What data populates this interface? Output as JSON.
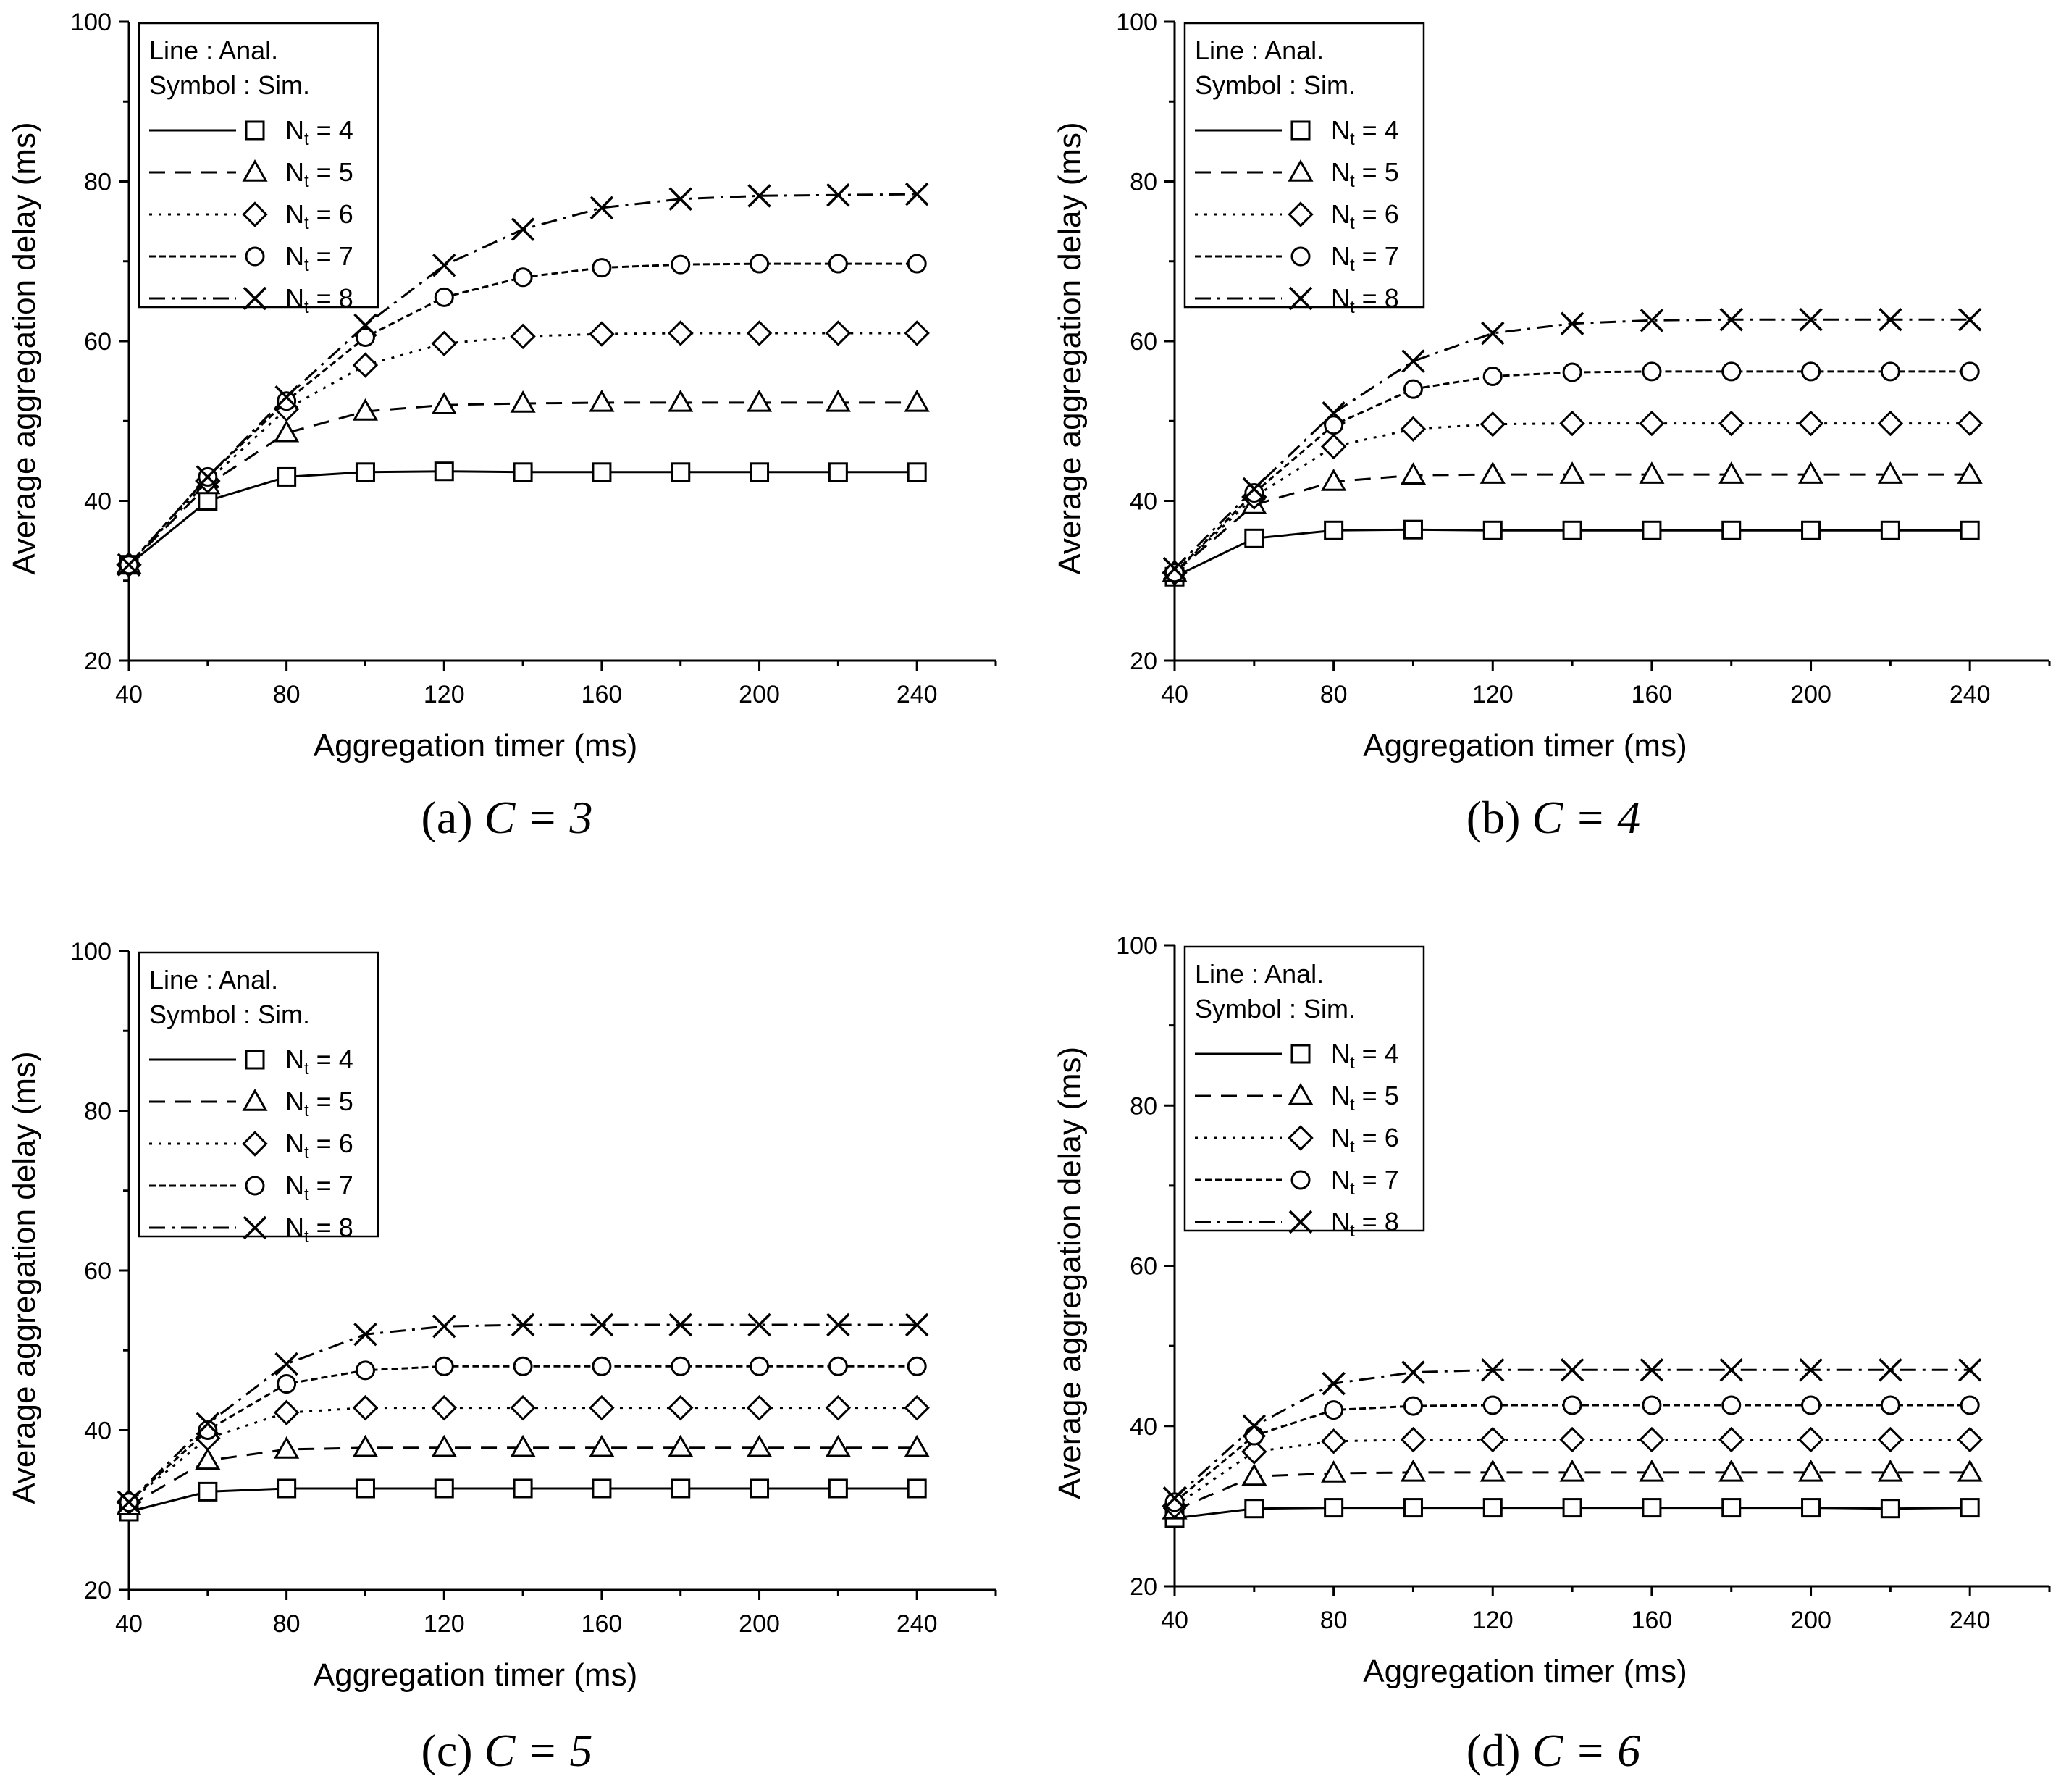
{
  "figure": {
    "panels": [
      {
        "caption_label": "(a)",
        "caption_text": "C = 3",
        "chart_data": {
          "type": "line",
          "xlabel": "Aggregation timer (ms)",
          "ylabel": "Average aggregation delay (ms)",
          "xlim": [
            40,
            260
          ],
          "ylim": [
            20,
            100
          ],
          "xticks": [
            40,
            80,
            120,
            160,
            200,
            240
          ],
          "yticks": [
            20,
            40,
            60,
            80,
            100
          ],
          "grid": false,
          "legend_position": "top-left",
          "legend_header": [
            "Line : Anal.",
            "Symbol : Sim."
          ],
          "x": [
            40,
            60,
            80,
            100,
            120,
            140,
            160,
            180,
            200,
            220,
            240
          ],
          "series": [
            {
              "name": "N_t = 4",
              "label_main": "N",
              "label_sub": "t",
              "label_rest": " = 4",
              "marker": "square",
              "dash": "solid",
              "values": [
                32,
                40,
                43,
                43.6,
                43.7,
                43.6,
                43.6,
                43.6,
                43.6,
                43.6,
                43.6
              ]
            },
            {
              "name": "N_t = 5",
              "label_main": "N",
              "label_sub": "t",
              "label_rest": " = 5",
              "marker": "triangle",
              "dash": "dash",
              "values": [
                32,
                42,
                48.5,
                51.2,
                52,
                52.2,
                52.3,
                52.3,
                52.3,
                52.3,
                52.3
              ]
            },
            {
              "name": "N_t = 6",
              "label_main": "N",
              "label_sub": "t",
              "label_rest": " = 6",
              "marker": "diamond",
              "dash": "dot",
              "values": [
                32,
                42.5,
                51.5,
                57,
                59.7,
                60.6,
                60.9,
                61,
                61,
                61,
                61
              ]
            },
            {
              "name": "N_t = 7",
              "label_main": "N",
              "label_sub": "t",
              "label_rest": " = 7",
              "marker": "circle",
              "dash": "shortdash",
              "values": [
                32,
                43,
                52.5,
                60.5,
                65.5,
                68,
                69.2,
                69.6,
                69.7,
                69.7,
                69.7
              ]
            },
            {
              "name": "N_t = 8",
              "label_main": "N",
              "label_sub": "t",
              "label_rest": " = 8",
              "marker": "x",
              "dash": "dashdot",
              "values": [
                32,
                43,
                53,
                62,
                69.5,
                74,
                76.7,
                77.8,
                78.2,
                78.3,
                78.4
              ]
            }
          ]
        }
      },
      {
        "caption_label": "(b)",
        "caption_text": "C = 4",
        "chart_data": {
          "type": "line",
          "xlabel": "Aggregation timer (ms)",
          "ylabel": "Average aggregation delay (ms)",
          "xlim": [
            40,
            260
          ],
          "ylim": [
            20,
            100
          ],
          "xticks": [
            40,
            80,
            120,
            160,
            200,
            240
          ],
          "yticks": [
            20,
            40,
            60,
            80,
            100
          ],
          "grid": false,
          "legend_position": "top-left",
          "legend_header": [
            "Line : Anal.",
            "Symbol : Sim."
          ],
          "x": [
            40,
            60,
            80,
            100,
            120,
            140,
            160,
            180,
            200,
            220,
            240
          ],
          "series": [
            {
              "name": "N_t = 4",
              "label_main": "N",
              "label_sub": "t",
              "label_rest": " = 4",
              "marker": "square",
              "dash": "solid",
              "values": [
                30.5,
                35.3,
                36.3,
                36.4,
                36.3,
                36.3,
                36.3,
                36.3,
                36.3,
                36.3,
                36.3
              ]
            },
            {
              "name": "N_t = 5",
              "label_main": "N",
              "label_sub": "t",
              "label_rest": " = 5",
              "marker": "triangle",
              "dash": "dash",
              "values": [
                31,
                39.5,
                42.4,
                43.2,
                43.3,
                43.3,
                43.3,
                43.3,
                43.3,
                43.3,
                43.3
              ]
            },
            {
              "name": "N_t = 6",
              "label_main": "N",
              "label_sub": "t",
              "label_rest": " = 6",
              "marker": "diamond",
              "dash": "dot",
              "values": [
                31,
                40.5,
                46.8,
                49,
                49.6,
                49.7,
                49.7,
                49.7,
                49.7,
                49.7,
                49.7
              ]
            },
            {
              "name": "N_t = 7",
              "label_main": "N",
              "label_sub": "t",
              "label_rest": " = 7",
              "marker": "circle",
              "dash": "shortdash",
              "values": [
                31,
                41,
                49.5,
                54,
                55.6,
                56.1,
                56.2,
                56.2,
                56.2,
                56.2,
                56.2
              ]
            },
            {
              "name": "N_t = 8",
              "label_main": "N",
              "label_sub": "t",
              "label_rest": " = 8",
              "marker": "x",
              "dash": "dashdot",
              "values": [
                31.5,
                41.5,
                51,
                57.5,
                61,
                62.2,
                62.6,
                62.7,
                62.7,
                62.7,
                62.7
              ]
            }
          ]
        }
      },
      {
        "caption_label": "(c)",
        "caption_text": "C = 5",
        "chart_data": {
          "type": "line",
          "xlabel": "Aggregation timer (ms)",
          "ylabel": "Average aggregation delay (ms)",
          "xlim": [
            40,
            260
          ],
          "ylim": [
            20,
            100
          ],
          "xticks": [
            40,
            80,
            120,
            160,
            200,
            240
          ],
          "yticks": [
            20,
            40,
            60,
            80,
            100
          ],
          "grid": false,
          "legend_position": "top-left",
          "legend_header": [
            "Line : Anal.",
            "Symbol : Sim."
          ],
          "x": [
            40,
            60,
            80,
            100,
            120,
            140,
            160,
            180,
            200,
            220,
            240
          ],
          "series": [
            {
              "name": "N_t = 4",
              "label_main": "N",
              "label_sub": "t",
              "label_rest": " = 4",
              "marker": "square",
              "dash": "solid",
              "values": [
                29.8,
                32.3,
                32.7,
                32.7,
                32.7,
                32.7,
                32.7,
                32.7,
                32.7,
                32.7,
                32.7
              ]
            },
            {
              "name": "N_t = 5",
              "label_main": "N",
              "label_sub": "t",
              "label_rest": " = 5",
              "marker": "triangle",
              "dash": "dash",
              "values": [
                30.5,
                36.2,
                37.6,
                37.8,
                37.8,
                37.8,
                37.8,
                37.8,
                37.8,
                37.8,
                37.8
              ]
            },
            {
              "name": "N_t = 6",
              "label_main": "N",
              "label_sub": "t",
              "label_rest": " = 6",
              "marker": "diamond",
              "dash": "dot",
              "values": [
                31,
                39,
                42.2,
                42.8,
                42.8,
                42.8,
                42.8,
                42.8,
                42.8,
                42.8,
                42.8
              ]
            },
            {
              "name": "N_t = 7",
              "label_main": "N",
              "label_sub": "t",
              "label_rest": " = 7",
              "marker": "circle",
              "dash": "shortdash",
              "values": [
                31,
                40,
                45.8,
                47.5,
                48,
                48,
                48,
                48,
                48,
                48,
                48
              ]
            },
            {
              "name": "N_t = 8",
              "label_main": "N",
              "label_sub": "t",
              "label_rest": " = 8",
              "marker": "x",
              "dash": "dashdot",
              "values": [
                31,
                40.8,
                48.3,
                52,
                53,
                53.2,
                53.2,
                53.2,
                53.2,
                53.2,
                53.2
              ]
            }
          ]
        }
      },
      {
        "caption_label": "(d)",
        "caption_text": "C = 6",
        "chart_data": {
          "type": "line",
          "xlabel": "Aggregation timer (ms)",
          "ylabel": "Average aggregation delay (ms)",
          "xlim": [
            40,
            260
          ],
          "ylim": [
            20,
            100
          ],
          "xticks": [
            40,
            80,
            120,
            160,
            200,
            240
          ],
          "yticks": [
            20,
            40,
            60,
            80,
            100
          ],
          "grid": false,
          "legend_position": "top-left",
          "legend_header": [
            "Line : Anal.",
            "Symbol : Sim."
          ],
          "x": [
            40,
            60,
            80,
            100,
            120,
            140,
            160,
            180,
            200,
            220,
            240
          ],
          "series": [
            {
              "name": "N_t = 4",
              "label_main": "N",
              "label_sub": "t",
              "label_rest": " = 4",
              "marker": "square",
              "dash": "solid",
              "values": [
                28.5,
                29.7,
                29.8,
                29.8,
                29.8,
                29.8,
                29.8,
                29.8,
                29.8,
                29.7,
                29.8
              ]
            },
            {
              "name": "N_t = 5",
              "label_main": "N",
              "label_sub": "t",
              "label_rest": " = 5",
              "marker": "triangle",
              "dash": "dash",
              "values": [
                29.5,
                33.7,
                34.1,
                34.2,
                34.2,
                34.2,
                34.2,
                34.2,
                34.2,
                34.2,
                34.2
              ]
            },
            {
              "name": "N_t = 6",
              "label_main": "N",
              "label_sub": "t",
              "label_rest": " = 6",
              "marker": "diamond",
              "dash": "dot",
              "values": [
                30,
                36.8,
                38.1,
                38.3,
                38.3,
                38.3,
                38.3,
                38.3,
                38.3,
                38.3,
                38.3
              ]
            },
            {
              "name": "N_t = 7",
              "label_main": "N",
              "label_sub": "t",
              "label_rest": " = 7",
              "marker": "circle",
              "dash": "shortdash",
              "values": [
                30.5,
                38.8,
                42,
                42.5,
                42.6,
                42.6,
                42.6,
                42.6,
                42.6,
                42.6,
                42.6
              ]
            },
            {
              "name": "N_t = 8",
              "label_main": "N",
              "label_sub": "t",
              "label_rest": " = 8",
              "marker": "x",
              "dash": "dashdot",
              "values": [
                31,
                40,
                45.3,
                46.7,
                47,
                47,
                47,
                47,
                47,
                47,
                47
              ]
            }
          ]
        }
      }
    ]
  }
}
